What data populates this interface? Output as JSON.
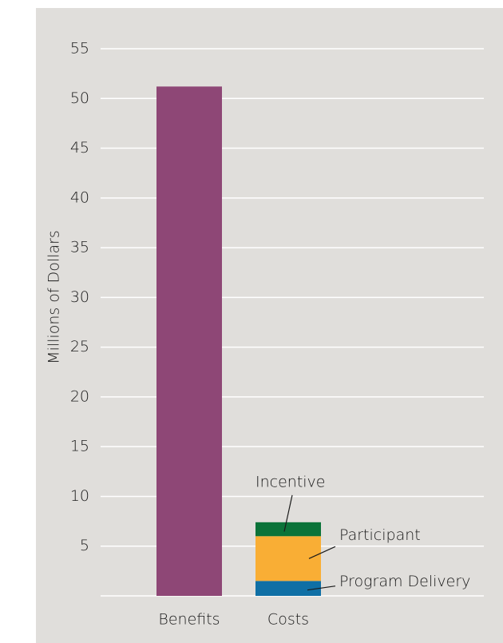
{
  "chart_data": {
    "type": "stacked_bar",
    "y_label": "Millions of Dollars",
    "categories": [
      "Benefits",
      "Costs"
    ],
    "series": [
      {
        "color": "#8e4776",
        "values": [
          51.2,
          null
        ]
      },
      {
        "name": "Program Delivery",
        "color": "#0f6fa5",
        "values": [
          null,
          1.5
        ]
      },
      {
        "name": "Participant",
        "color": "#f9ae35",
        "values": [
          null,
          4.5
        ]
      },
      {
        "name": "Incentive",
        "color": "#0b7339",
        "values": [
          null,
          1.4
        ]
      }
    ],
    "ylim": [
      0,
      55
    ],
    "yticks": [
      5,
      10,
      15,
      20,
      25,
      30,
      35,
      40,
      45,
      50,
      55
    ],
    "grid": true
  }
}
